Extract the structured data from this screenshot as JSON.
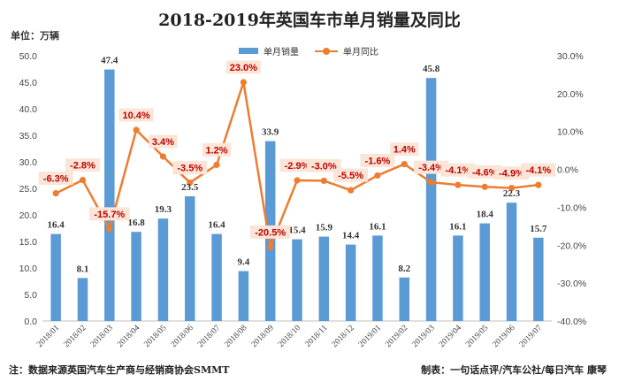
{
  "title": "2018-2019年英国车市单月销量及同比",
  "unit_label": "单位：万辆",
  "note": "注：数据来源英国汽车生产商与经销商协会SMMT",
  "credit": "制表：一句话点评/汽车公社/每日汽车 康琴",
  "chart_data": {
    "type": "bar+line",
    "categories": [
      "2018/01",
      "2018/02",
      "2018/03",
      "2018/04",
      "2018/05",
      "2018/06",
      "2018/07",
      "2018/08",
      "2018/09",
      "2018/10",
      "2018/11",
      "2018/12",
      "2019/01",
      "2019/02",
      "2019/03",
      "2019/04",
      "2019/05",
      "2019/06",
      "2019/07"
    ],
    "series": [
      {
        "name": "单月销量",
        "type": "bar",
        "axis": "left",
        "color": "#5b9bd5",
        "values": [
          16.4,
          8.1,
          47.4,
          16.8,
          19.3,
          23.5,
          16.4,
          9.4,
          33.9,
          15.4,
          15.9,
          14.4,
          16.1,
          8.2,
          45.8,
          16.1,
          18.4,
          22.3,
          15.7
        ],
        "labels": [
          "16.4",
          "8.1",
          "47.4",
          "16.8",
          "19.3",
          "23.5",
          "16.4",
          "9.4",
          "33.9",
          "15.4",
          "15.9",
          "14.4",
          "16.1",
          "8.2",
          "45.8",
          "16.1",
          "18.4",
          "22.3",
          "15.7"
        ]
      },
      {
        "name": "单月同比",
        "type": "line",
        "axis": "right",
        "color": "#ed7d31",
        "values": [
          -6.3,
          -2.8,
          -15.7,
          10.4,
          3.4,
          -3.5,
          1.2,
          23.0,
          -20.5,
          -2.9,
          -3.0,
          -5.5,
          -1.6,
          1.4,
          -3.4,
          -4.1,
          -4.6,
          -4.9,
          -4.1
        ],
        "labels": [
          "-6.3%",
          "-2.8%",
          "-15.7%",
          "10.4%",
          "3.4%",
          "-3.5%",
          "1.2%",
          "23.0%",
          "-20.5%",
          "-2.9%",
          "-3.0%",
          "-5.5%",
          "-1.6%",
          "1.4%",
          "-3.4%",
          "-4.1%",
          "-4.6%",
          "-4.9%",
          "-4.1%"
        ]
      }
    ],
    "y_left": {
      "min": 0,
      "max": 50,
      "step": 5,
      "tick_labels": [
        "0.0",
        "5.0",
        "10.0",
        "15.0",
        "20.0",
        "25.0",
        "30.0",
        "35.0",
        "40.0",
        "45.0",
        "50.0"
      ]
    },
    "y_right": {
      "min": -40,
      "max": 30,
      "step": 10,
      "tick_labels": [
        "-40.0%",
        "-30.0%",
        "-20.0%",
        "-10.0%",
        "0.0%",
        "10.0%",
        "20.0%",
        "30.0%"
      ]
    },
    "legend_position": "top",
    "grid": false,
    "label_box_color": "#fbe5d6",
    "label_text_color": "#c00000"
  }
}
